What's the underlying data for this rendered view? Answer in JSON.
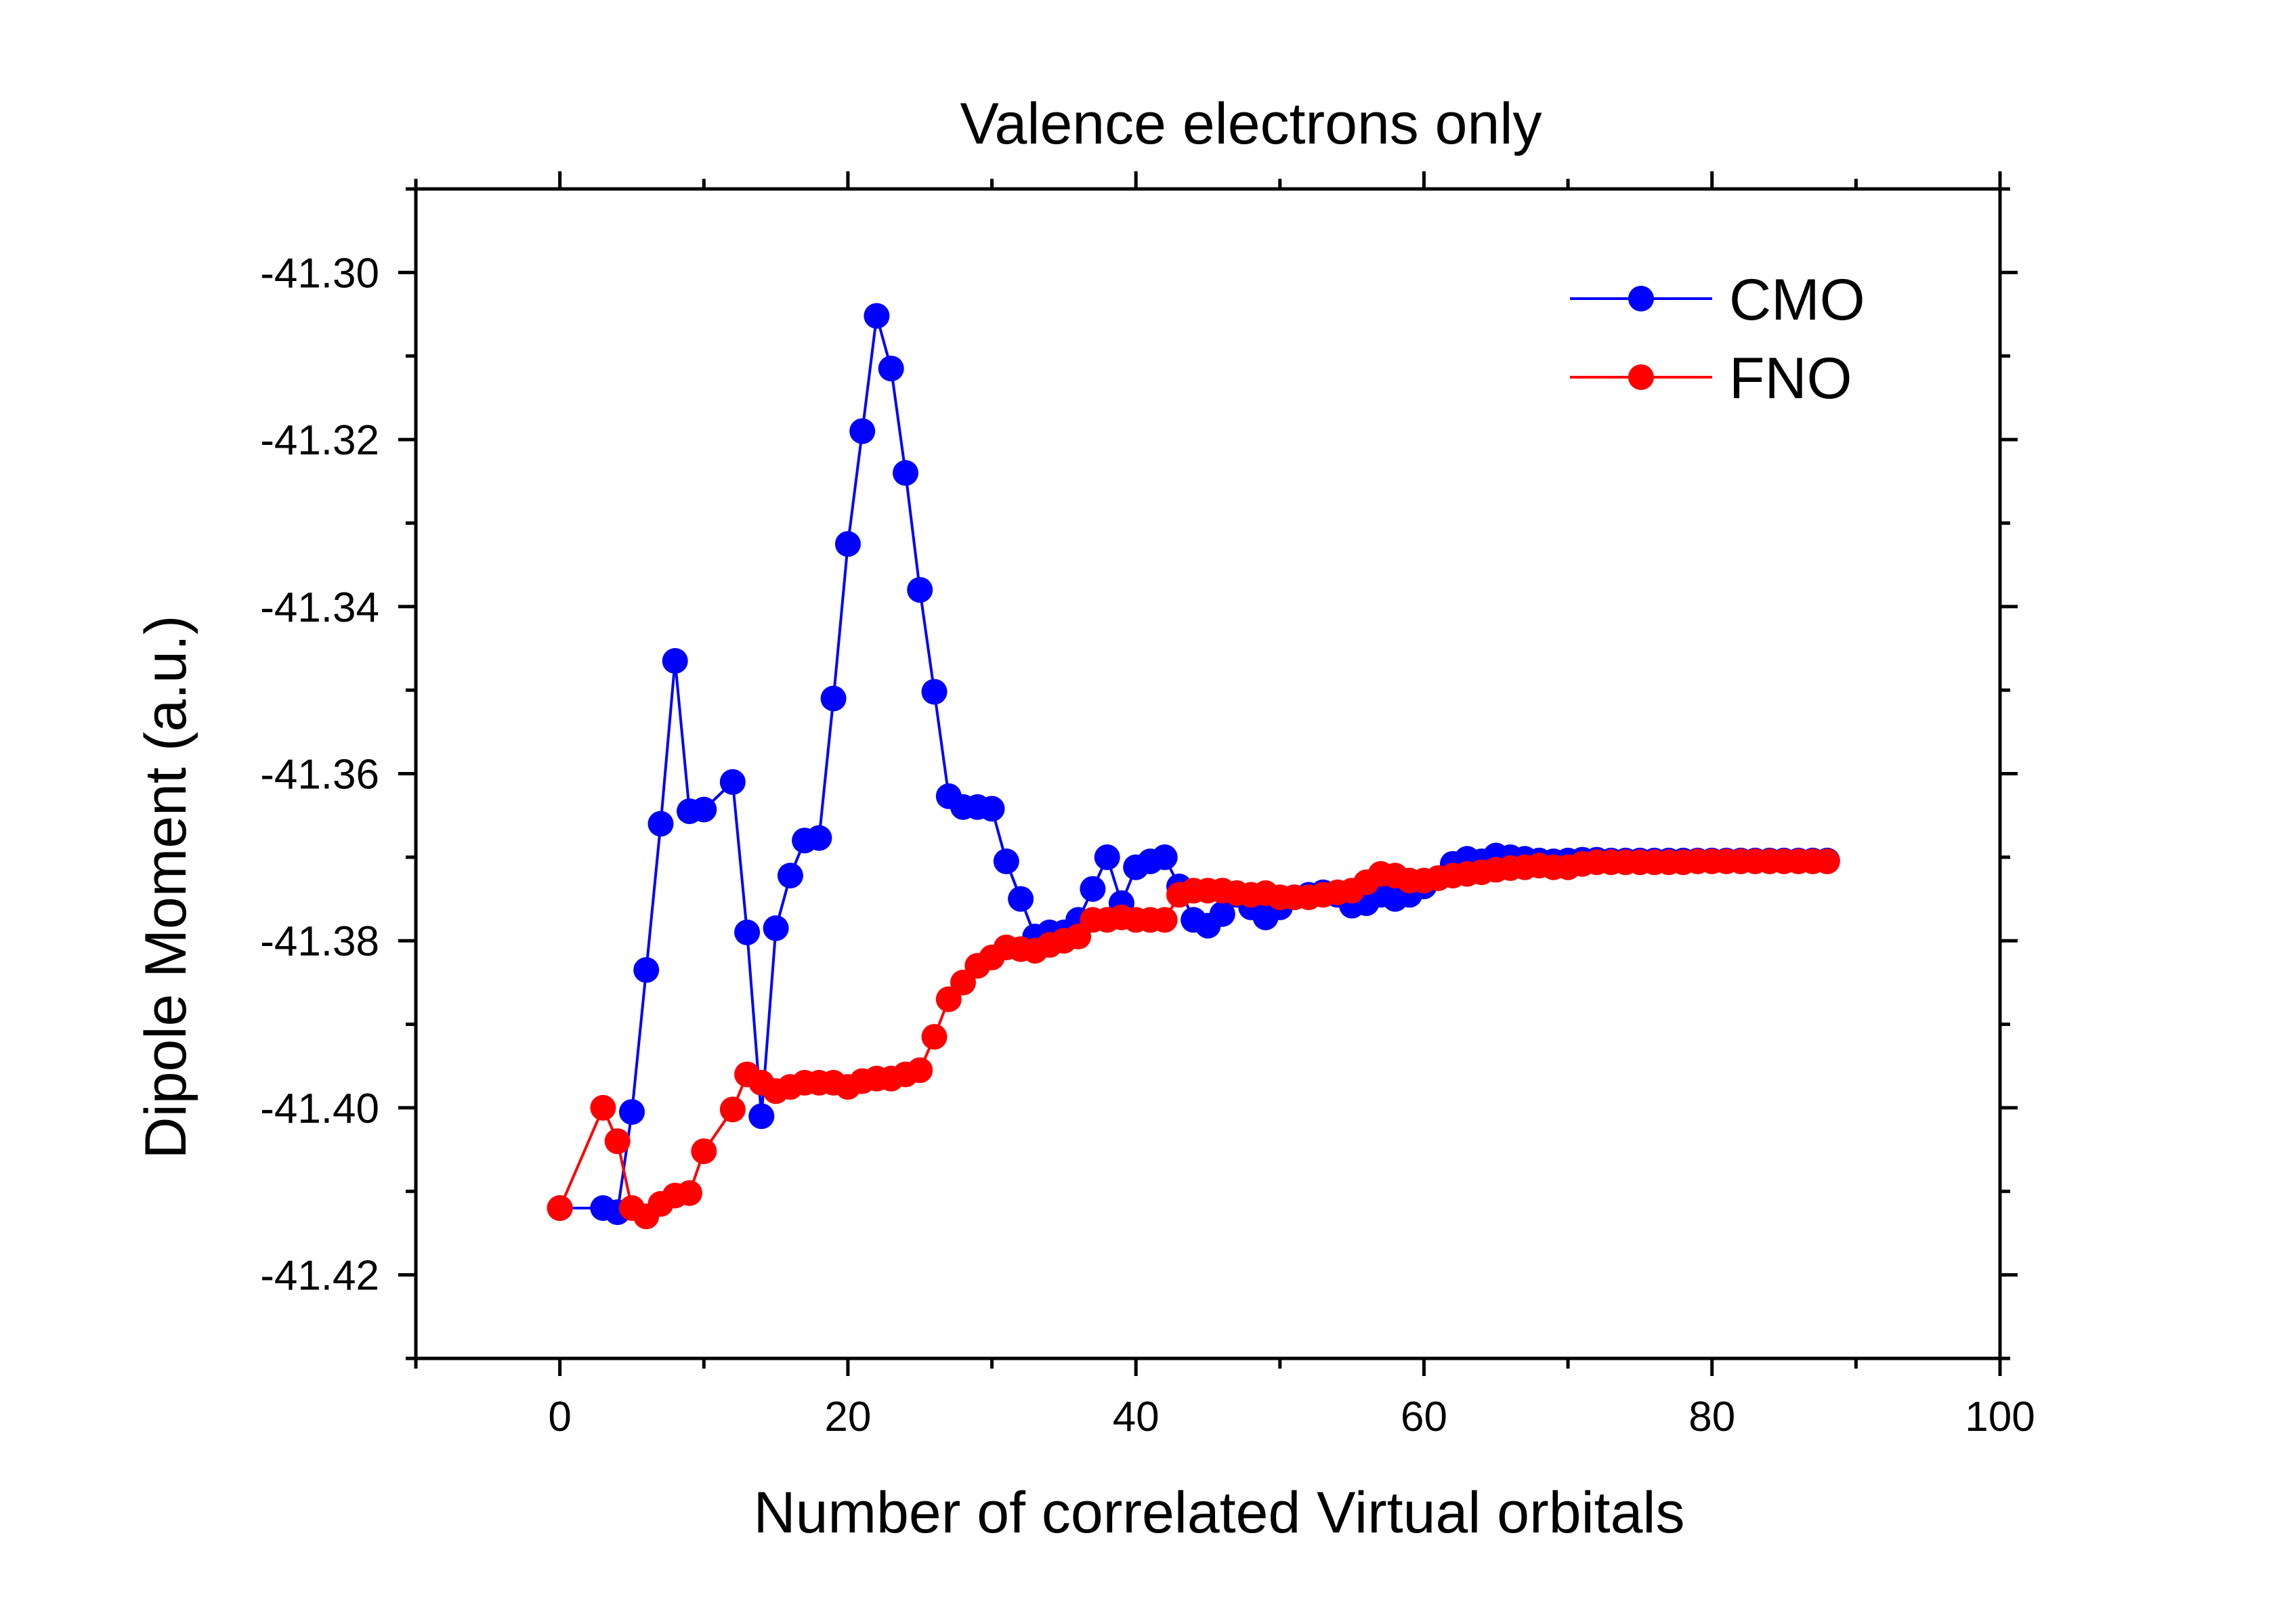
{
  "chart_data": {
    "type": "line",
    "title": "Valence electrons only",
    "xlabel": "Number of correlated Virtual orbitals",
    "ylabel": "Dipole Moment (a.u.)",
    "xlim": [
      -10,
      100
    ],
    "ylim": [
      -41.43,
      -41.29
    ],
    "xticks": [
      0,
      20,
      40,
      60,
      80,
      100
    ],
    "xtick_labels": [
      "0",
      "20",
      "40",
      "60",
      "80",
      "100"
    ],
    "yticks": [
      -41.42,
      -41.4,
      -41.38,
      -41.36,
      -41.34,
      -41.32,
      -41.3
    ],
    "ytick_labels": [
      "-41.42",
      "-41.40",
      "-41.38",
      "-41.36",
      "-41.34",
      "-41.32",
      "-41.30"
    ],
    "legend_position": "top-right",
    "series": [
      {
        "name": "CMO",
        "color": "#0000ff",
        "x": [
          0,
          3,
          4,
          5,
          6,
          7,
          8,
          9,
          10,
          12,
          13,
          14,
          15,
          16,
          17,
          18,
          19,
          20,
          21,
          22,
          23,
          24,
          25,
          26,
          27,
          28,
          29,
          30,
          31,
          32,
          33,
          34,
          35,
          36,
          37,
          38,
          39,
          40,
          41,
          42,
          43,
          44,
          45,
          46,
          47,
          48,
          49,
          50,
          51,
          52,
          53,
          54,
          55,
          56,
          57,
          58,
          59,
          60,
          61,
          62,
          63,
          64,
          65,
          66,
          67,
          68,
          69,
          70,
          71,
          72,
          73,
          74,
          75,
          76,
          77,
          78,
          79,
          80,
          81,
          82,
          83,
          84,
          85,
          86,
          87,
          88
        ],
        "values": [
          -41.412,
          -41.412,
          -41.4125,
          -41.4005,
          -41.3835,
          -41.366,
          -41.3465,
          -41.3645,
          -41.3643,
          -41.361,
          -41.379,
          -41.401,
          -41.3785,
          -41.3722,
          -41.368,
          -41.3677,
          -41.351,
          -41.3325,
          -41.319,
          -41.3052,
          -41.3115,
          -41.324,
          -41.338,
          -41.3502,
          -41.3627,
          -41.364,
          -41.364,
          -41.3642,
          -41.3705,
          -41.375,
          -41.3795,
          -41.379,
          -41.379,
          -41.3775,
          -41.3738,
          -41.37,
          -41.3755,
          -41.3712,
          -41.3705,
          -41.37,
          -41.3735,
          -41.3775,
          -41.3782,
          -41.3768,
          -41.3745,
          -41.376,
          -41.3772,
          -41.376,
          -41.3748,
          -41.3745,
          -41.3742,
          -41.3745,
          -41.3758,
          -41.3755,
          -41.3745,
          -41.375,
          -41.3745,
          -41.3735,
          -41.3725,
          -41.3708,
          -41.3702,
          -41.3705,
          -41.3698,
          -41.37,
          -41.3702,
          -41.3704,
          -41.3705,
          -41.3704,
          -41.3703,
          -41.3703,
          -41.3704,
          -41.3704,
          -41.3704,
          -41.3704,
          -41.3704,
          -41.3704,
          -41.3704,
          -41.3704,
          -41.3704,
          -41.3704,
          -41.3704,
          -41.3704,
          -41.3704,
          -41.3704,
          -41.3704,
          -41.3704
        ]
      },
      {
        "name": "FNO",
        "color": "#ff0000",
        "x": [
          0,
          3,
          4,
          5,
          6,
          7,
          8,
          9,
          10,
          12,
          13,
          14,
          15,
          16,
          17,
          18,
          19,
          20,
          21,
          22,
          23,
          24,
          25,
          26,
          27,
          28,
          29,
          30,
          31,
          32,
          33,
          34,
          35,
          36,
          37,
          38,
          39,
          40,
          41,
          42,
          43,
          44,
          45,
          46,
          47,
          48,
          49,
          50,
          51,
          52,
          53,
          54,
          55,
          56,
          57,
          58,
          59,
          60,
          61,
          62,
          63,
          64,
          65,
          66,
          67,
          68,
          69,
          70,
          71,
          72,
          73,
          74,
          75,
          76,
          77,
          78,
          79,
          80,
          81,
          82,
          83,
          84,
          85,
          86,
          87,
          88
        ],
        "values": [
          -41.412,
          -41.4,
          -41.404,
          -41.412,
          -41.413,
          -41.4115,
          -41.4105,
          -41.4102,
          -41.4052,
          -41.4002,
          -41.396,
          -41.397,
          -41.398,
          -41.3975,
          -41.397,
          -41.397,
          -41.397,
          -41.3975,
          -41.3968,
          -41.3965,
          -41.3965,
          -41.396,
          -41.3955,
          -41.3915,
          -41.387,
          -41.385,
          -41.383,
          -41.382,
          -41.3808,
          -41.381,
          -41.3812,
          -41.3805,
          -41.38,
          -41.3795,
          -41.3775,
          -41.3775,
          -41.3772,
          -41.3775,
          -41.3775,
          -41.3775,
          -41.3745,
          -41.374,
          -41.374,
          -41.374,
          -41.3743,
          -41.3745,
          -41.3743,
          -41.3748,
          -41.3748,
          -41.3748,
          -41.3745,
          -41.3742,
          -41.374,
          -41.373,
          -41.372,
          -41.3722,
          -41.3728,
          -41.3728,
          -41.3725,
          -41.3722,
          -41.372,
          -41.3718,
          -41.3715,
          -41.3713,
          -41.3712,
          -41.371,
          -41.3712,
          -41.3712,
          -41.3708,
          -41.3706,
          -41.3706,
          -41.3706,
          -41.3706,
          -41.3706,
          -41.3706,
          -41.3706,
          -41.3705,
          -41.3705,
          -41.3705,
          -41.3705,
          -41.3705,
          -41.3705,
          -41.3705,
          -41.3705,
          -41.3705,
          -41.3705
        ]
      }
    ]
  }
}
